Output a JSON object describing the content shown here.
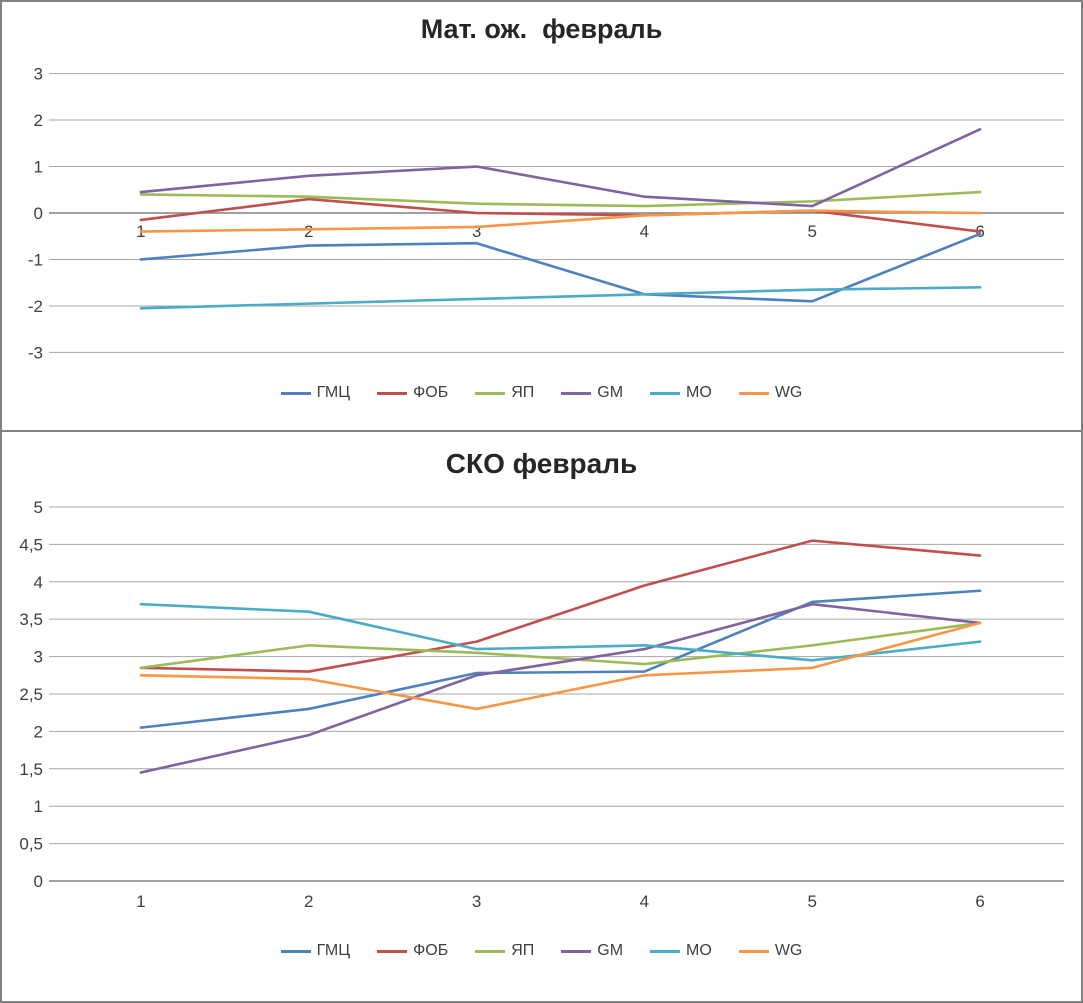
{
  "chart_data": [
    {
      "type": "line",
      "title": "Мат. ож.  февраль",
      "categories": [
        "1",
        "2",
        "3",
        "4",
        "5",
        "6"
      ],
      "xlabel": "",
      "ylabel": "",
      "ylim": [
        -3.4,
        3.4
      ],
      "grid": true,
      "legend_position": "bottom",
      "axis_cross": 0,
      "yticks": {
        "values": [
          3,
          2,
          1,
          0,
          -1,
          -2,
          -3
        ],
        "labels": [
          "3",
          "2",
          "1",
          "0",
          "-1",
          "-2",
          "-3"
        ]
      },
      "series": [
        {
          "id": "gmc",
          "name": "ГМЦ",
          "color": "#4F81BD",
          "values": [
            -1.0,
            -0.7,
            -0.65,
            -1.75,
            -1.9,
            -0.45
          ]
        },
        {
          "id": "fob",
          "name": "ФОБ",
          "color": "#C0504D",
          "values": [
            -0.15,
            0.3,
            0.0,
            -0.05,
            0.05,
            -0.4
          ]
        },
        {
          "id": "yap",
          "name": "ЯП",
          "color": "#9BBB59",
          "values": [
            0.4,
            0.35,
            0.2,
            0.15,
            0.25,
            0.45
          ]
        },
        {
          "id": "gm",
          "name": "GM",
          "color": "#8064A2",
          "values": [
            0.45,
            0.8,
            1.0,
            0.35,
            0.15,
            1.8
          ]
        },
        {
          "id": "mo",
          "name": "МО",
          "color": "#4BACC6",
          "values": [
            -2.05,
            -1.95,
            -1.85,
            -1.75,
            -1.65,
            -1.6
          ]
        },
        {
          "id": "wg",
          "name": "WG",
          "color": "#F79646",
          "values": [
            -0.4,
            -0.35,
            -0.3,
            -0.05,
            0.05,
            0.0
          ]
        }
      ]
    },
    {
      "type": "line",
      "title": "СКО февраль",
      "categories": [
        "1",
        "2",
        "3",
        "4",
        "5",
        "6"
      ],
      "xlabel": "",
      "ylabel": "",
      "ylim": [
        0,
        5.2
      ],
      "grid": true,
      "legend_position": "bottom",
      "axis_cross": 0,
      "yticks": {
        "values": [
          5,
          4.5,
          4,
          3.5,
          3,
          2.5,
          2,
          1.5,
          1,
          0.5,
          0
        ],
        "labels": [
          "5",
          "4,5",
          "4",
          "3,5",
          "3",
          "2,5",
          "2",
          "1,5",
          "1",
          "0,5",
          "0"
        ]
      },
      "series": [
        {
          "id": "gmc",
          "name": "ГМЦ",
          "color": "#4F81BD",
          "values": [
            2.05,
            2.3,
            2.78,
            2.8,
            3.73,
            3.88
          ]
        },
        {
          "id": "fob",
          "name": "ФОБ",
          "color": "#C0504D",
          "values": [
            2.85,
            2.8,
            3.2,
            3.95,
            4.55,
            4.35
          ]
        },
        {
          "id": "yap",
          "name": "ЯП",
          "color": "#9BBB59",
          "values": [
            2.85,
            3.15,
            3.05,
            2.9,
            3.15,
            3.45
          ]
        },
        {
          "id": "gm",
          "name": "GM",
          "color": "#8064A2",
          "values": [
            1.45,
            1.95,
            2.75,
            3.1,
            3.7,
            3.45
          ]
        },
        {
          "id": "mo",
          "name": "МО",
          "color": "#4BACC6",
          "values": [
            3.7,
            3.6,
            3.1,
            3.15,
            2.95,
            3.2
          ]
        },
        {
          "id": "wg",
          "name": "WG",
          "color": "#F79646",
          "values": [
            2.75,
            2.7,
            2.3,
            2.75,
            2.85,
            3.45
          ]
        }
      ]
    }
  ]
}
